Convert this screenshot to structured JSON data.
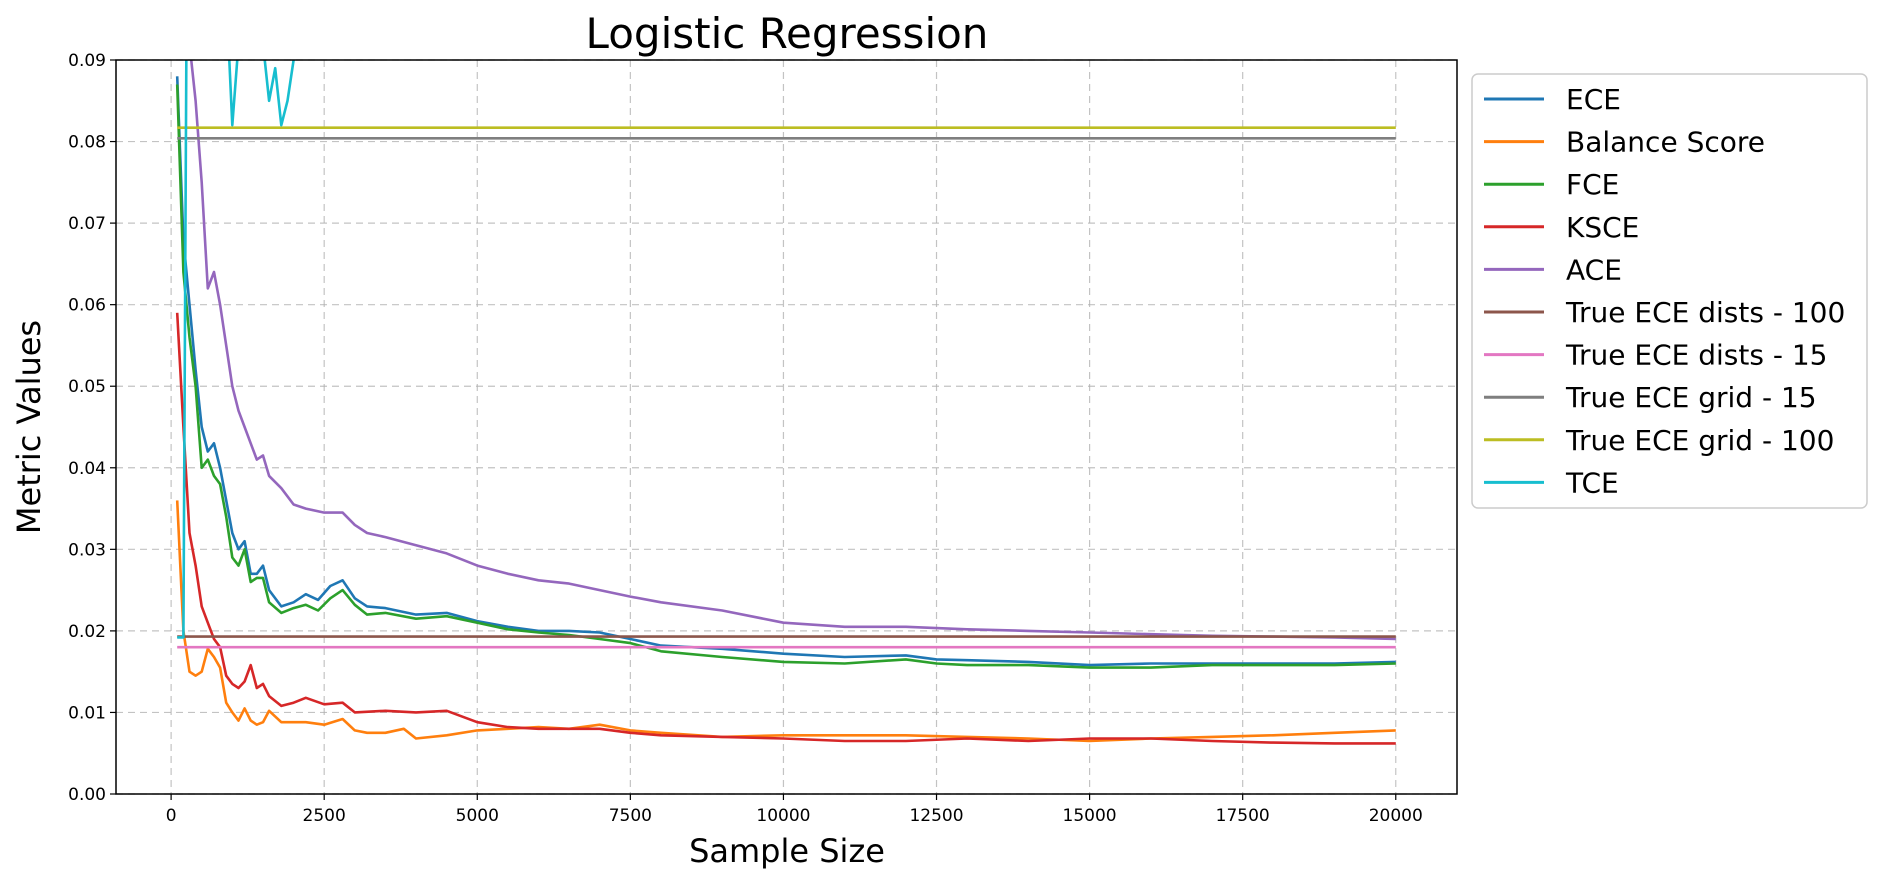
{
  "chart_data": {
    "type": "line",
    "title": "Logistic Regression",
    "xlabel": "Sample Size",
    "ylabel": "Metric Values",
    "xlim": [
      -900,
      21000
    ],
    "ylim": [
      0,
      0.09
    ],
    "xticks": [
      0,
      2500,
      5000,
      7500,
      10000,
      12500,
      15000,
      17500,
      20000
    ],
    "yticks": [
      0.0,
      0.01,
      0.02,
      0.03,
      0.04,
      0.05,
      0.06,
      0.07,
      0.08,
      0.09
    ],
    "xtick_labels": [
      "0",
      "2500",
      "5000",
      "7500",
      "10000",
      "12500",
      "15000",
      "17500",
      "20000"
    ],
    "ytick_labels": [
      "0.00",
      "0.01",
      "0.02",
      "0.03",
      "0.04",
      "0.05",
      "0.06",
      "0.07",
      "0.08",
      "0.09"
    ],
    "grid": true,
    "legend_position": "outside-top-right",
    "series": [
      {
        "name": "ECE",
        "color": "#1f77b4",
        "points": [
          [
            100,
            0.088
          ],
          [
            200,
            0.068
          ],
          [
            300,
            0.06
          ],
          [
            400,
            0.052
          ],
          [
            500,
            0.045
          ],
          [
            600,
            0.042
          ],
          [
            700,
            0.043
          ],
          [
            800,
            0.04
          ],
          [
            900,
            0.036
          ],
          [
            1000,
            0.032
          ],
          [
            1100,
            0.03
          ],
          [
            1200,
            0.031
          ],
          [
            1300,
            0.027
          ],
          [
            1400,
            0.027
          ],
          [
            1500,
            0.028
          ],
          [
            1600,
            0.025
          ],
          [
            1800,
            0.023
          ],
          [
            2000,
            0.0235
          ],
          [
            2200,
            0.0245
          ],
          [
            2400,
            0.0238
          ],
          [
            2600,
            0.0255
          ],
          [
            2800,
            0.0262
          ],
          [
            3000,
            0.024
          ],
          [
            3200,
            0.023
          ],
          [
            3500,
            0.0228
          ],
          [
            4000,
            0.022
          ],
          [
            4500,
            0.0222
          ],
          [
            5000,
            0.0212
          ],
          [
            5500,
            0.0205
          ],
          [
            6000,
            0.02
          ],
          [
            6500,
            0.02
          ],
          [
            7000,
            0.0198
          ],
          [
            7500,
            0.019
          ],
          [
            8000,
            0.0182
          ],
          [
            9000,
            0.0178
          ],
          [
            10000,
            0.0172
          ],
          [
            11000,
            0.0168
          ],
          [
            12000,
            0.017
          ],
          [
            12500,
            0.0165
          ],
          [
            13000,
            0.0164
          ],
          [
            14000,
            0.0162
          ],
          [
            15000,
            0.0158
          ],
          [
            16000,
            0.016
          ],
          [
            17000,
            0.016
          ],
          [
            18000,
            0.016
          ],
          [
            19000,
            0.016
          ],
          [
            20000,
            0.0162
          ]
        ]
      },
      {
        "name": "Balance Score",
        "color": "#ff7f0e",
        "points": [
          [
            100,
            0.036
          ],
          [
            200,
            0.02
          ],
          [
            300,
            0.015
          ],
          [
            400,
            0.0145
          ],
          [
            500,
            0.015
          ],
          [
            600,
            0.0178
          ],
          [
            700,
            0.0168
          ],
          [
            800,
            0.0155
          ],
          [
            900,
            0.0112
          ],
          [
            1000,
            0.01
          ],
          [
            1100,
            0.009
          ],
          [
            1200,
            0.0105
          ],
          [
            1300,
            0.009
          ],
          [
            1400,
            0.0085
          ],
          [
            1500,
            0.0088
          ],
          [
            1600,
            0.0102
          ],
          [
            1800,
            0.0088
          ],
          [
            2000,
            0.0088
          ],
          [
            2200,
            0.0088
          ],
          [
            2500,
            0.0085
          ],
          [
            2800,
            0.0092
          ],
          [
            3000,
            0.0078
          ],
          [
            3200,
            0.0075
          ],
          [
            3500,
            0.0075
          ],
          [
            3800,
            0.008
          ],
          [
            4000,
            0.0068
          ],
          [
            4500,
            0.0072
          ],
          [
            5000,
            0.0078
          ],
          [
            5500,
            0.008
          ],
          [
            6000,
            0.0082
          ],
          [
            6500,
            0.008
          ],
          [
            7000,
            0.0085
          ],
          [
            7500,
            0.0078
          ],
          [
            8000,
            0.0075
          ],
          [
            9000,
            0.007
          ],
          [
            10000,
            0.0072
          ],
          [
            11000,
            0.0072
          ],
          [
            12000,
            0.0072
          ],
          [
            13000,
            0.007
          ],
          [
            14000,
            0.0068
          ],
          [
            15000,
            0.0065
          ],
          [
            16000,
            0.0068
          ],
          [
            17000,
            0.007
          ],
          [
            18000,
            0.0072
          ],
          [
            19000,
            0.0075
          ],
          [
            20000,
            0.0078
          ]
        ]
      },
      {
        "name": "FCE",
        "color": "#2ca02c",
        "points": [
          [
            100,
            0.087
          ],
          [
            200,
            0.064
          ],
          [
            300,
            0.056
          ],
          [
            400,
            0.05
          ],
          [
            500,
            0.04
          ],
          [
            600,
            0.041
          ],
          [
            700,
            0.039
          ],
          [
            800,
            0.038
          ],
          [
            900,
            0.034
          ],
          [
            1000,
            0.029
          ],
          [
            1100,
            0.028
          ],
          [
            1200,
            0.03
          ],
          [
            1300,
            0.026
          ],
          [
            1400,
            0.0265
          ],
          [
            1500,
            0.0265
          ],
          [
            1600,
            0.0235
          ],
          [
            1800,
            0.0222
          ],
          [
            2000,
            0.0228
          ],
          [
            2200,
            0.0232
          ],
          [
            2400,
            0.0225
          ],
          [
            2600,
            0.024
          ],
          [
            2800,
            0.025
          ],
          [
            3000,
            0.0232
          ],
          [
            3200,
            0.022
          ],
          [
            3500,
            0.0222
          ],
          [
            4000,
            0.0215
          ],
          [
            4500,
            0.0218
          ],
          [
            5000,
            0.021
          ],
          [
            5500,
            0.0202
          ],
          [
            6000,
            0.0198
          ],
          [
            6500,
            0.0195
          ],
          [
            7000,
            0.019
          ],
          [
            7500,
            0.0185
          ],
          [
            8000,
            0.0175
          ],
          [
            9000,
            0.0168
          ],
          [
            10000,
            0.0162
          ],
          [
            11000,
            0.016
          ],
          [
            12000,
            0.0165
          ],
          [
            12500,
            0.016
          ],
          [
            13000,
            0.0158
          ],
          [
            14000,
            0.0158
          ],
          [
            15000,
            0.0155
          ],
          [
            16000,
            0.0155
          ],
          [
            17000,
            0.0158
          ],
          [
            18000,
            0.0158
          ],
          [
            19000,
            0.0158
          ],
          [
            20000,
            0.016
          ]
        ]
      },
      {
        "name": "KSCE",
        "color": "#d62728",
        "points": [
          [
            100,
            0.059
          ],
          [
            200,
            0.045
          ],
          [
            300,
            0.032
          ],
          [
            400,
            0.028
          ],
          [
            500,
            0.023
          ],
          [
            600,
            0.021
          ],
          [
            700,
            0.019
          ],
          [
            800,
            0.018
          ],
          [
            900,
            0.0145
          ],
          [
            1000,
            0.0135
          ],
          [
            1100,
            0.013
          ],
          [
            1200,
            0.0138
          ],
          [
            1300,
            0.0158
          ],
          [
            1400,
            0.013
          ],
          [
            1500,
            0.0135
          ],
          [
            1600,
            0.012
          ],
          [
            1800,
            0.0108
          ],
          [
            2000,
            0.0112
          ],
          [
            2200,
            0.0118
          ],
          [
            2500,
            0.011
          ],
          [
            2800,
            0.0112
          ],
          [
            3000,
            0.01
          ],
          [
            3500,
            0.0102
          ],
          [
            4000,
            0.01
          ],
          [
            4500,
            0.0102
          ],
          [
            5000,
            0.0088
          ],
          [
            5500,
            0.0082
          ],
          [
            6000,
            0.008
          ],
          [
            6500,
            0.008
          ],
          [
            7000,
            0.008
          ],
          [
            7500,
            0.0075
          ],
          [
            8000,
            0.0072
          ],
          [
            9000,
            0.007
          ],
          [
            10000,
            0.0068
          ],
          [
            11000,
            0.0065
          ],
          [
            12000,
            0.0065
          ],
          [
            13000,
            0.0068
          ],
          [
            14000,
            0.0065
          ],
          [
            15000,
            0.0068
          ],
          [
            16000,
            0.0068
          ],
          [
            17000,
            0.0065
          ],
          [
            18000,
            0.0063
          ],
          [
            19000,
            0.0062
          ],
          [
            20000,
            0.0062
          ]
        ]
      },
      {
        "name": "ACE",
        "color": "#9467bd",
        "points": [
          [
            100,
            0.092
          ],
          [
            200,
            0.092
          ],
          [
            300,
            0.092
          ],
          [
            400,
            0.085
          ],
          [
            500,
            0.075
          ],
          [
            600,
            0.062
          ],
          [
            700,
            0.064
          ],
          [
            800,
            0.06
          ],
          [
            900,
            0.055
          ],
          [
            1000,
            0.05
          ],
          [
            1100,
            0.047
          ],
          [
            1200,
            0.045
          ],
          [
            1300,
            0.043
          ],
          [
            1400,
            0.041
          ],
          [
            1500,
            0.0415
          ],
          [
            1600,
            0.039
          ],
          [
            1800,
            0.0375
          ],
          [
            2000,
            0.0355
          ],
          [
            2200,
            0.035
          ],
          [
            2500,
            0.0345
          ],
          [
            2800,
            0.0345
          ],
          [
            3000,
            0.033
          ],
          [
            3200,
            0.032
          ],
          [
            3500,
            0.0315
          ],
          [
            4000,
            0.0305
          ],
          [
            4500,
            0.0295
          ],
          [
            5000,
            0.028
          ],
          [
            5500,
            0.027
          ],
          [
            6000,
            0.0262
          ],
          [
            6500,
            0.0258
          ],
          [
            7000,
            0.025
          ],
          [
            7500,
            0.0242
          ],
          [
            8000,
            0.0235
          ],
          [
            9000,
            0.0225
          ],
          [
            10000,
            0.021
          ],
          [
            11000,
            0.0205
          ],
          [
            12000,
            0.0205
          ],
          [
            13000,
            0.0202
          ],
          [
            14000,
            0.02
          ],
          [
            15000,
            0.0198
          ],
          [
            16000,
            0.0196
          ],
          [
            17000,
            0.0194
          ],
          [
            18000,
            0.0193
          ],
          [
            19000,
            0.0192
          ],
          [
            20000,
            0.019
          ]
        ]
      },
      {
        "name": "True ECE dists - 100",
        "color": "#8c564b",
        "points": [
          [
            100,
            0.0193
          ],
          [
            20000,
            0.0193
          ]
        ]
      },
      {
        "name": "True ECE dists - 15",
        "color": "#e377c2",
        "points": [
          [
            100,
            0.018
          ],
          [
            20000,
            0.018
          ]
        ]
      },
      {
        "name": "True ECE grid - 15",
        "color": "#7f7f7f",
        "points": [
          [
            100,
            0.0804
          ],
          [
            20000,
            0.0804
          ]
        ]
      },
      {
        "name": "True ECE grid - 100",
        "color": "#bcbd22",
        "points": [
          [
            100,
            0.0817
          ],
          [
            20000,
            0.0817
          ]
        ]
      },
      {
        "name": "TCE",
        "color": "#17becf",
        "points": [
          [
            100,
            0.0192
          ],
          [
            200,
            0.0192
          ],
          [
            250,
            0.092
          ],
          [
            300,
            0.092
          ],
          [
            400,
            0.092
          ],
          [
            500,
            0.092
          ],
          [
            600,
            0.092
          ],
          [
            700,
            0.092
          ],
          [
            800,
            0.092
          ],
          [
            900,
            0.092
          ],
          [
            950,
            0.09
          ],
          [
            1000,
            0.082
          ],
          [
            1100,
            0.092
          ],
          [
            1300,
            0.092
          ],
          [
            1500,
            0.092
          ],
          [
            1600,
            0.085
          ],
          [
            1700,
            0.089
          ],
          [
            1800,
            0.082
          ],
          [
            1900,
            0.085
          ],
          [
            2000,
            0.09
          ],
          [
            2100,
            0.092
          ]
        ]
      }
    ]
  }
}
